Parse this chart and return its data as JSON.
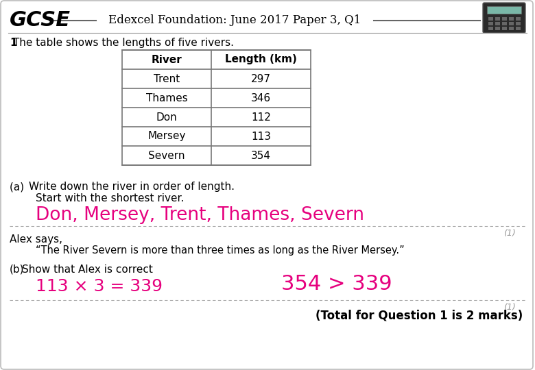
{
  "title_gcse": "GCSE",
  "title_main": "Edexcel Foundation: June 2017 Paper 3, Q1",
  "question_number": "1",
  "question_text": " The table shows the lengths of five rivers.",
  "table_headers": [
    "River",
    "Length (km)"
  ],
  "table_rows": [
    [
      "Trent",
      "297"
    ],
    [
      "Thames",
      "346"
    ],
    [
      "Don",
      "112"
    ],
    [
      "Mersey",
      "113"
    ],
    [
      "Severn",
      "354"
    ]
  ],
  "part_a_label": "(a)  ",
  "part_a_text1": "Write down the river in order of length.",
  "part_a_text2": "Start with the shortest river.",
  "part_a_answer": "Don, Mersey, Trent, Thames, Severn",
  "mark_a": "(1)",
  "alex_says": "Alex says,",
  "alex_quote": "“The River Severn is more than three times as long as the River Mersey.”",
  "part_b_label": "(b)",
  "part_b_text": "Show that Alex is correct",
  "part_b_answer1": "113 × 3 = 339",
  "part_b_answer2": "354 > 339",
  "mark_b": "(1)",
  "total_marks": "(Total for Question 1 is 2 marks)",
  "bg_color": "#ffffff",
  "border_color": "#bbbbbb",
  "text_color": "#000000",
  "answer_color": "#e6007e",
  "dotted_line_color": "#aaaaaa",
  "mark_color": "#999999",
  "table_border_color": "#777777"
}
